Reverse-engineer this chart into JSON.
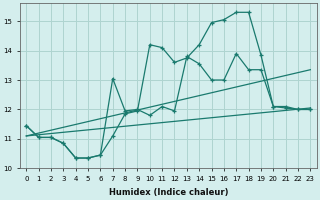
{
  "xlabel": "Humidex (Indice chaleur)",
  "ylabel": "",
  "bg_color": "#d4eeed",
  "grid_color": "#aed4d0",
  "line_color": "#1a7a6e",
  "xmin": -0.5,
  "xmax": 23.5,
  "ymin": 10,
  "ymax": 15.6,
  "yticks": [
    10,
    11,
    12,
    13,
    14,
    15
  ],
  "xticks": [
    0,
    1,
    2,
    3,
    4,
    5,
    6,
    7,
    8,
    9,
    10,
    11,
    12,
    13,
    14,
    15,
    16,
    17,
    18,
    19,
    20,
    21,
    22,
    23
  ],
  "series1_x": [
    0,
    1,
    2,
    3,
    4,
    5,
    6,
    7,
    8,
    9,
    10,
    11,
    12,
    13,
    14,
    15,
    16,
    17,
    18,
    19,
    20,
    21,
    22,
    23
  ],
  "series1_y": [
    11.45,
    11.05,
    11.05,
    10.85,
    10.35,
    10.35,
    10.45,
    11.1,
    11.85,
    11.95,
    14.2,
    14.1,
    13.6,
    13.75,
    14.2,
    14.95,
    15.05,
    15.3,
    15.3,
    13.85,
    12.1,
    12.1,
    12.0,
    12.0
  ],
  "series2_x": [
    0,
    1,
    2,
    3,
    4,
    5,
    6,
    7,
    8,
    9,
    10,
    11,
    12,
    13,
    14,
    15,
    16,
    17,
    18,
    19,
    20,
    21,
    22,
    23
  ],
  "series2_y": [
    11.45,
    11.05,
    11.05,
    10.85,
    10.35,
    10.35,
    10.45,
    13.05,
    11.95,
    12.0,
    11.8,
    12.1,
    11.95,
    13.8,
    13.55,
    13.0,
    13.0,
    13.9,
    13.35,
    13.35,
    12.1,
    12.05,
    12.0,
    12.0
  ],
  "series3_x": [
    0,
    23
  ],
  "series3_y": [
    11.1,
    13.35
  ],
  "series4_x": [
    0,
    23
  ],
  "series4_y": [
    11.1,
    12.05
  ]
}
